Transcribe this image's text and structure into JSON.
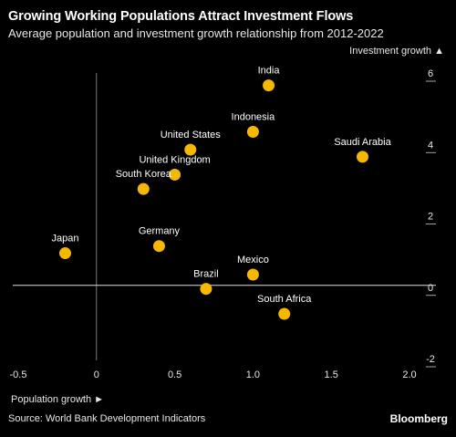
{
  "header": {
    "title": "Growing Working Populations Attract Investment Flows",
    "subtitle": "Average population and investment growth relationship from 2012-2022"
  },
  "footer": {
    "source": "Source: World Bank Development Indicators",
    "brand": "Bloomberg"
  },
  "colors": {
    "background": "#000000",
    "point": "#f5b800",
    "axis": "#cccccc",
    "text": "#ffffff"
  },
  "chart_data": {
    "type": "scatter",
    "xlabel": "Population growth ►",
    "ylabel": "Investment growth ▲",
    "xlim": [
      -0.5,
      2.0
    ],
    "ylim": [
      -2,
      6
    ],
    "xticks": [
      "-0.5",
      "0",
      "0.5",
      "1.0",
      "1.5",
      "2.0"
    ],
    "xtick_values": [
      -0.5,
      0,
      0.5,
      1.0,
      1.5,
      2.0
    ],
    "yticks": [
      "-2",
      "0",
      "2",
      "4",
      "6"
    ],
    "ytick_values": [
      -2,
      0,
      2,
      4,
      6
    ],
    "grid": false,
    "points": [
      {
        "label": "India",
        "x": 1.1,
        "y": 5.6
      },
      {
        "label": "Indonesia",
        "x": 1.0,
        "y": 4.3
      },
      {
        "label": "Saudi Arabia",
        "x": 1.7,
        "y": 3.6
      },
      {
        "label": "United States",
        "x": 0.6,
        "y": 3.8
      },
      {
        "label": "United Kingdom",
        "x": 0.5,
        "y": 3.1
      },
      {
        "label": "South Korea",
        "x": 0.3,
        "y": 2.7
      },
      {
        "label": "Japan",
        "x": -0.2,
        "y": 0.9
      },
      {
        "label": "Germany",
        "x": 0.4,
        "y": 1.1
      },
      {
        "label": "Mexico",
        "x": 1.0,
        "y": 0.3
      },
      {
        "label": "Brazil",
        "x": 0.7,
        "y": -0.1
      },
      {
        "label": "South Africa",
        "x": 1.2,
        "y": -0.8
      }
    ]
  }
}
